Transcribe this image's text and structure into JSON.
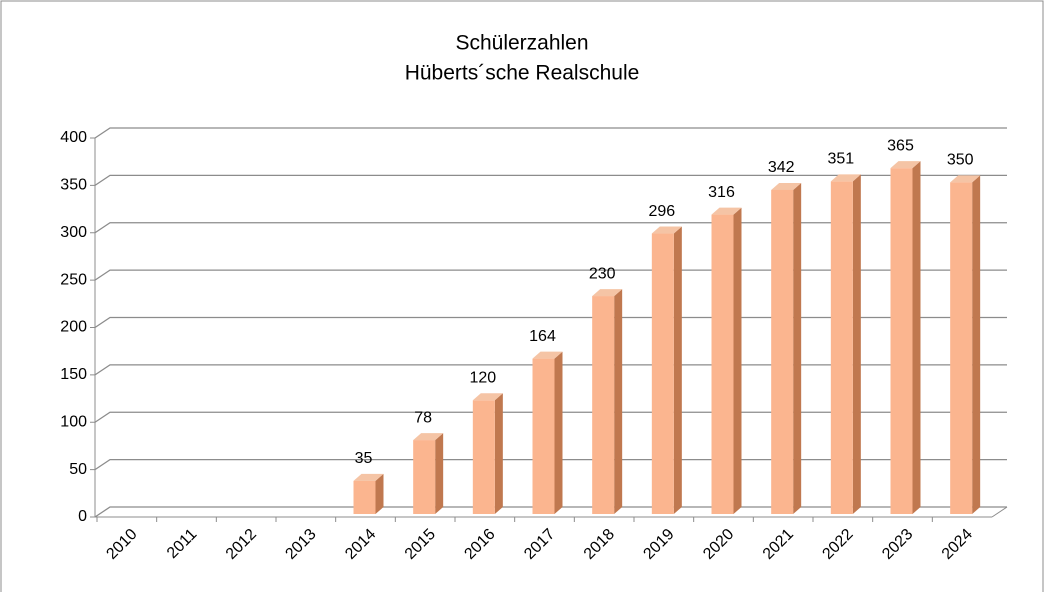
{
  "chart_data": {
    "type": "bar3d",
    "title": "Schülerzahlen",
    "subtitle": "Hüberts´sche Realschule",
    "categories": [
      "2010",
      "2011",
      "2012",
      "2013",
      "2014",
      "2015",
      "2016",
      "2017",
      "2018",
      "2019",
      "2020",
      "2021",
      "2022",
      "2023",
      "2024"
    ],
    "values": [
      null,
      null,
      null,
      null,
      35,
      78,
      120,
      164,
      230,
      296,
      316,
      342,
      351,
      365,
      350
    ],
    "color": "#fbb58f",
    "ylim": [
      0,
      400
    ],
    "yticks": [
      0,
      50,
      100,
      150,
      200,
      250,
      300,
      350,
      400
    ],
    "grid": true,
    "data_labels": true
  }
}
